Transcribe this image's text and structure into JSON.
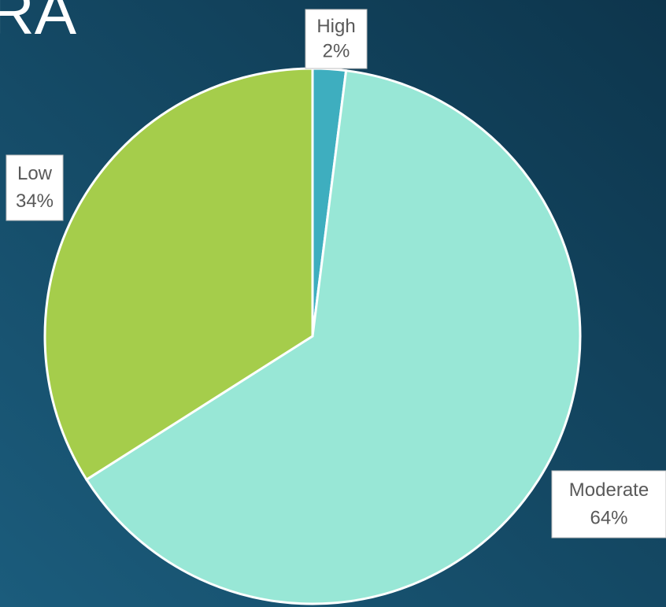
{
  "chart_data": {
    "type": "pie",
    "title": "RA",
    "categories": [
      "High",
      "Moderate",
      "Low"
    ],
    "values": [
      2,
      64,
      34
    ],
    "value_labels": [
      "2%",
      "64%",
      "34%"
    ],
    "colors": [
      "#3eaebf",
      "#98e7d6",
      "#a5cd4b"
    ]
  }
}
